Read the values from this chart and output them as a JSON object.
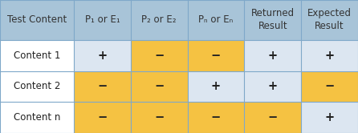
{
  "col_labels": [
    "Test Content",
    "P₁ or E₁",
    "P₂ or E₂",
    "Pₙ or Eₙ",
    "Returned\nResult",
    "Expected\nResult"
  ],
  "row_labels": [
    "Content 1",
    "Content 2",
    "Content n"
  ],
  "cell_values": [
    [
      "+",
      "−",
      "−",
      "+",
      "+"
    ],
    [
      "−",
      "−",
      "+",
      "+",
      "−"
    ],
    [
      "−",
      "−",
      "−",
      "−",
      "+"
    ]
  ],
  "cell_colors": [
    [
      "#dce6f1",
      "#f5c242",
      "#f5c242",
      "#dce6f1",
      "#dce6f1"
    ],
    [
      "#f5c242",
      "#f5c242",
      "#dce6f1",
      "#dce6f1",
      "#f5c242"
    ],
    [
      "#f5c242",
      "#f5c242",
      "#f5c242",
      "#f5c242",
      "#dce6f1"
    ]
  ],
  "row_label_colors": [
    "#ffffff",
    "#ffffff",
    "#ffffff"
  ],
  "header_color": "#a8c4d8",
  "header_text_color": "#333333",
  "cell_text_color": "#222222",
  "border_color": "#7fa8c9",
  "col_widths": [
    1.3,
    1.0,
    1.0,
    1.0,
    1.0,
    1.0
  ],
  "header_fontsize": 8.5,
  "cell_fontsize": 10.5,
  "row_label_fontsize": 8.5,
  "fig_width": 4.46,
  "fig_height": 1.66,
  "dpi": 100
}
